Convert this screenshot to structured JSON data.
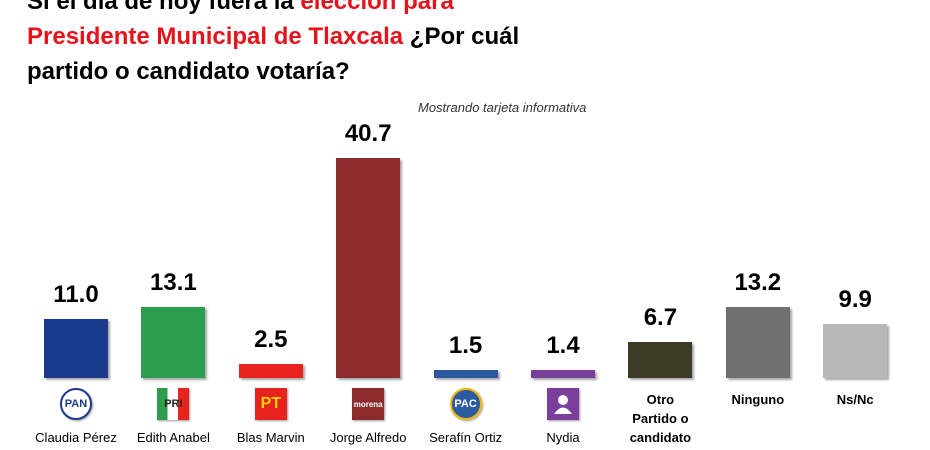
{
  "chart_data": {
    "type": "bar",
    "title_lines": [
      [
        {
          "text": "Si el día de hoy fuera la ",
          "color": "#000000"
        },
        {
          "text": "elección para",
          "color": "#e8121b"
        }
      ],
      [
        {
          "text": "Presidente Municipal de Tlaxcala",
          "color": "#e8121b"
        },
        {
          "text": " ¿Por cuál",
          "color": "#000000"
        }
      ],
      [
        {
          "text": "partido o candidato votaría?",
          "color": "#000000"
        }
      ]
    ],
    "subtitle": "Mostrando tarjeta informativa",
    "categories": [
      "Claudia Pérez",
      "Edith Anabel",
      "Blas Marvin",
      "Jorge Alfredo",
      "Serafín Ortiz",
      "Nydia",
      "Otro Partido o candidato",
      "Ninguno",
      "Ns/Nc"
    ],
    "logos": [
      "PAN",
      "PRI",
      "PT",
      "morena",
      "PAC",
      null,
      null,
      null,
      null
    ],
    "values": [
      11.0,
      13.1,
      2.5,
      40.7,
      1.5,
      1.4,
      6.7,
      13.2,
      9.9
    ],
    "value_labels": [
      "11.0",
      "13.1",
      "2.5",
      "40.7",
      "1.5",
      "1.4",
      "6.7",
      "13.2",
      "9.9"
    ],
    "colors": [
      "#1c3a8e",
      "#2c9e4e",
      "#e8231e",
      "#8c2b2b",
      "#2b5aa0",
      "#7a3e9d",
      "#3e3a26",
      "#707070",
      "#b8b8b8"
    ]
  }
}
